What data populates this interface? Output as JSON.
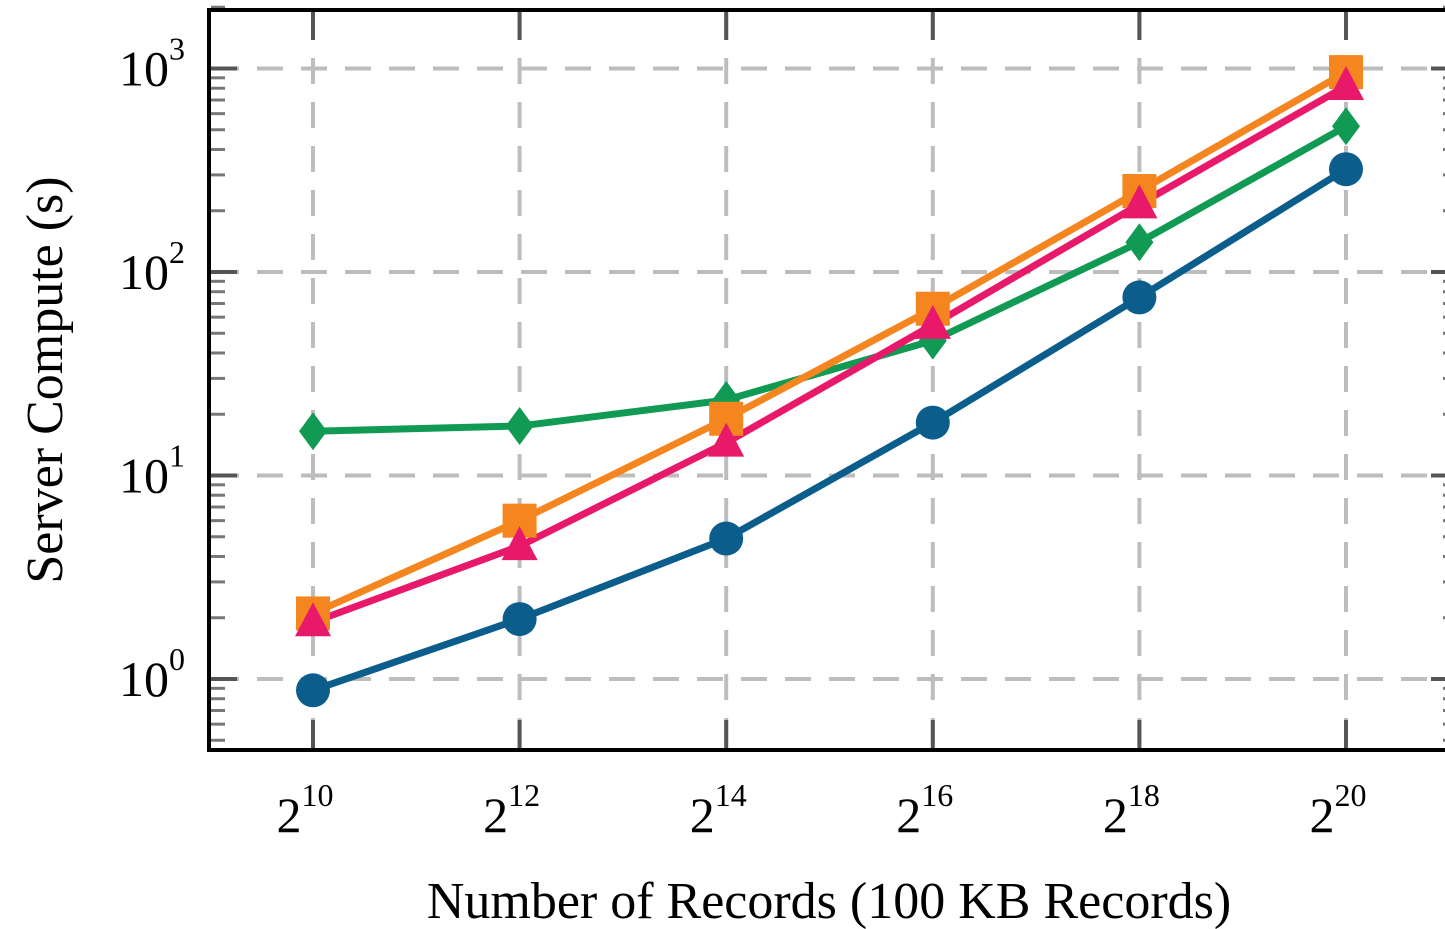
{
  "chart_data": {
    "type": "line",
    "xlabel": "Number of Records (100 KB Records)",
    "ylabel": "Server Compute (s)",
    "yscale": "log",
    "ylim": [
      0.45,
      2000
    ],
    "xlim": [
      9,
      21
    ],
    "x_ticks": [
      {
        "base": "2",
        "exp": "10",
        "value": 1024
      },
      {
        "base": "2",
        "exp": "12",
        "value": 4096
      },
      {
        "base": "2",
        "exp": "14",
        "value": 16384
      },
      {
        "base": "2",
        "exp": "16",
        "value": 65536
      },
      {
        "base": "2",
        "exp": "18",
        "value": 262144
      },
      {
        "base": "2",
        "exp": "20",
        "value": 1048576
      }
    ],
    "y_ticks": [
      {
        "base": "10",
        "exp": "0",
        "value": 1
      },
      {
        "base": "10",
        "exp": "1",
        "value": 10
      },
      {
        "base": "10",
        "exp": "2",
        "value": 100
      },
      {
        "base": "10",
        "exp": "3",
        "value": 1000
      }
    ],
    "grid": true,
    "x": [
      1024,
      4096,
      16384,
      65536,
      262144,
      1048576
    ],
    "series": [
      {
        "color": "#119a54",
        "marker": "diamond",
        "values": [
          16.5,
          17.5,
          23.5,
          46,
          140,
          520
        ]
      },
      {
        "color": "#f5861f",
        "marker": "square",
        "values": [
          2.1,
          6.0,
          19.0,
          66,
          250,
          960
        ]
      },
      {
        "color": "#e8196a",
        "marker": "triangle",
        "values": [
          1.9,
          4.5,
          14.5,
          55,
          215,
          820
        ]
      },
      {
        "color": "#0b5e8c",
        "marker": "circle",
        "values": [
          0.88,
          1.97,
          4.9,
          18.2,
          75,
          320
        ]
      }
    ]
  }
}
